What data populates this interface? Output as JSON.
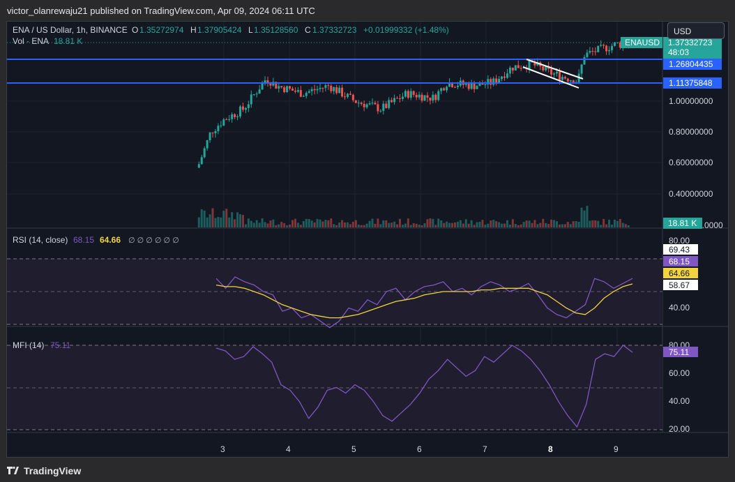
{
  "header": {
    "published": "victor_olanrewaju21 published on TradingView.com, Apr 09, 2024 06:11 UTC"
  },
  "legend": {
    "symbol": "ENA / US Dollar, 1h, BINANCE",
    "o_label": "O",
    "o": "1.35272974",
    "h_label": "H",
    "h": "1.37905424",
    "l_label": "L",
    "l": "1.35128560",
    "c_label": "C",
    "c": "1.37332723",
    "change": "+0.01999332 (+1.48%)",
    "vol_label": "Vol · ENA",
    "vol": "18.81 K"
  },
  "currency_button": "USD",
  "price_axis": {
    "ticks": [
      "1.00000000",
      "0.80000000",
      "0.60000000",
      "0.40000000",
      "0.0000"
    ],
    "badge_symbol": "ENAUSD",
    "badge_price": "1.37332723",
    "badge_timer": "48:03",
    "line1_label": "1.26804435",
    "line2_label": "1.11375848",
    "vol_badge": "18.81 K"
  },
  "rsi": {
    "label": "RSI (14, close)",
    "val1": "68.15",
    "val2": "64.66",
    "glyphs": "∅ ∅ ∅ ∅ ∅ ∅",
    "ticks": [
      "80.00",
      "40.00"
    ],
    "badges": [
      "69.43",
      "68.15",
      "64.66",
      "58.67"
    ]
  },
  "mfi": {
    "label": "MFI (14)",
    "val": "75.11",
    "ticks": [
      "80.00",
      "60.00",
      "40.00",
      "20.00"
    ],
    "badge": "75.11"
  },
  "time_axis": [
    "3",
    "4",
    "5",
    "6",
    "7",
    "8",
    "9"
  ],
  "footer": {
    "brand": "TradingView"
  },
  "colors": {
    "up": "#26a69a",
    "down": "#ef5350",
    "rsi": "#7e57c2",
    "rsi_ma": "#f2d43e",
    "hline": "#2962ff",
    "bg": "#131722"
  },
  "chart_data": [
    {
      "type": "candlestick",
      "title": "ENA / US Dollar, 1h, BINANCE",
      "x": [
        "3",
        "4",
        "5",
        "6",
        "7",
        "8",
        "9"
      ],
      "horizontal_levels": [
        1.26804435,
        1.11375848
      ],
      "last_close": 1.37332723,
      "approx_path": [
        {
          "x": "2.6",
          "y": 0.57
        },
        {
          "x": "2.8",
          "y": 0.8
        },
        {
          "x": "3",
          "y": 0.88
        },
        {
          "x": "3.3",
          "y": 0.95
        },
        {
          "x": "3.65",
          "y": 1.15
        },
        {
          "x": "3.8",
          "y": 1.1
        },
        {
          "x": "4.2",
          "y": 1.05
        },
        {
          "x": "4.6",
          "y": 1.1
        },
        {
          "x": "5",
          "y": 1.0
        },
        {
          "x": "5.4",
          "y": 0.95
        },
        {
          "x": "5.8",
          "y": 1.05
        },
        {
          "x": "6.2",
          "y": 1.02
        },
        {
          "x": "6.4",
          "y": 1.12
        },
        {
          "x": "6.8",
          "y": 1.1
        },
        {
          "x": "7.1",
          "y": 1.12
        },
        {
          "x": "7.4",
          "y": 1.22
        },
        {
          "x": "7.7",
          "y": 1.24
        },
        {
          "x": "8",
          "y": 1.18
        },
        {
          "x": "8.4",
          "y": 1.13
        },
        {
          "x": "8.5",
          "y": 1.3
        },
        {
          "x": "9",
          "y": 1.37
        }
      ]
    },
    {
      "type": "line",
      "title": "RSI (14, close)",
      "series": [
        {
          "name": "RSI",
          "values": [
            68,
            62,
            69,
            66,
            64,
            60,
            58,
            48,
            50,
            44,
            46,
            42,
            38,
            42,
            50,
            48,
            55,
            52,
            60,
            62,
            55,
            60,
            63,
            64,
            66,
            60,
            62,
            58,
            63,
            66,
            64,
            60,
            62,
            65,
            58,
            50,
            46,
            44,
            48,
            52,
            68,
            66,
            62,
            65,
            68
          ]
        },
        {
          "name": "MA",
          "values": [
            64,
            63,
            63,
            62,
            60,
            58,
            55,
            52,
            50,
            48,
            46,
            45,
            44,
            44,
            45,
            46,
            48,
            50,
            52,
            54,
            55,
            56,
            58,
            59,
            60,
            60,
            60,
            60,
            61,
            61,
            62,
            62,
            62,
            62,
            60,
            58,
            54,
            50,
            47,
            46,
            50,
            56,
            60,
            63,
            64.66
          ]
        }
      ],
      "ylim": [
        30,
        90
      ]
    },
    {
      "type": "line",
      "title": "MFI (14)",
      "series": [
        {
          "name": "MFI",
          "values": [
            78,
            76,
            70,
            72,
            79,
            74,
            68,
            52,
            48,
            40,
            28,
            36,
            48,
            50,
            46,
            52,
            48,
            40,
            30,
            26,
            32,
            38,
            46,
            56,
            62,
            70,
            64,
            58,
            62,
            72,
            68,
            74,
            80,
            76,
            70,
            62,
            52,
            40,
            30,
            22,
            38,
            70,
            74,
            72,
            80,
            75
          ]
        }
      ],
      "ylim": [
        15,
        85
      ]
    }
  ]
}
